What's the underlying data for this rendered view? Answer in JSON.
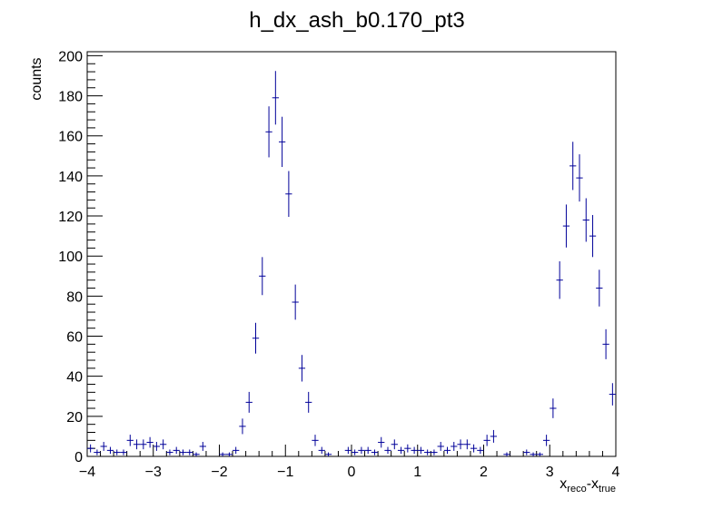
{
  "chart_data": {
    "type": "scatter",
    "title": "h_dx_ash_b0.170_pt3",
    "xlabel": {
      "main1": "x",
      "sub1": "reco",
      "dash": "-",
      "main2": "x",
      "sub2": "true"
    },
    "ylabel": "counts",
    "xlim": [
      -4,
      4
    ],
    "ylim": [
      0,
      202
    ],
    "x_ticks": [
      -4,
      -3,
      -2,
      -1,
      0,
      1,
      2,
      3,
      4
    ],
    "x_tick_labels": [
      "−4",
      "−3",
      "−2",
      "−1",
      "0",
      "1",
      "2",
      "3",
      "4"
    ],
    "y_ticks": [
      0,
      20,
      40,
      60,
      80,
      100,
      120,
      140,
      160,
      180,
      200
    ],
    "y_tick_labels": [
      "0",
      "20",
      "40",
      "60",
      "80",
      "100",
      "120",
      "140",
      "160",
      "180",
      "200"
    ],
    "bin_width": 0.1,
    "marker_color": "#000099",
    "frame_color": "#000000",
    "grid": false,
    "series": [
      {
        "x": [
          -3.95,
          -3.85,
          -3.75,
          -3.65,
          -3.55,
          -3.45,
          -3.35,
          -3.25,
          -3.15,
          -3.05,
          -2.95,
          -2.85,
          -2.75,
          -2.65,
          -2.55,
          -2.45,
          -2.35,
          -2.25,
          -2.15,
          -2.05,
          -1.95,
          -1.85,
          -1.75,
          -1.65,
          -1.55,
          -1.45,
          -1.35,
          -1.25,
          -1.15,
          -1.05,
          -0.95,
          -0.85,
          -0.75,
          -0.65,
          -0.55,
          -0.45,
          -0.35,
          -0.25,
          -0.15,
          -0.05,
          0.05,
          0.15,
          0.25,
          0.35,
          0.45,
          0.55,
          0.65,
          0.75,
          0.85,
          0.95,
          1.05,
          1.15,
          1.25,
          1.35,
          1.45,
          1.55,
          1.65,
          1.75,
          1.85,
          1.95,
          2.05,
          2.15,
          2.25,
          2.35,
          2.45,
          2.55,
          2.65,
          2.75,
          2.85,
          2.95,
          3.05,
          3.15,
          3.25,
          3.35,
          3.45,
          3.55,
          3.65,
          3.75,
          3.85,
          3.95
        ],
        "y": [
          4,
          2,
          5,
          3,
          2,
          2,
          8,
          6,
          6,
          7,
          5,
          6,
          2,
          3,
          2,
          2,
          1,
          5,
          0,
          0,
          1,
          1,
          3,
          15,
          27,
          59,
          90,
          162,
          179,
          157,
          131,
          77,
          44,
          27,
          8,
          3,
          1,
          0,
          0,
          3,
          2,
          3,
          3,
          2,
          7,
          3,
          6,
          3,
          4,
          3,
          3,
          2,
          2,
          5,
          3,
          5,
          6,
          6,
          4,
          3,
          8,
          10,
          0,
          1,
          0,
          0,
          2,
          1,
          1,
          8,
          24,
          88,
          115,
          145,
          139,
          118,
          110,
          84,
          56,
          31
        ]
      }
    ]
  }
}
